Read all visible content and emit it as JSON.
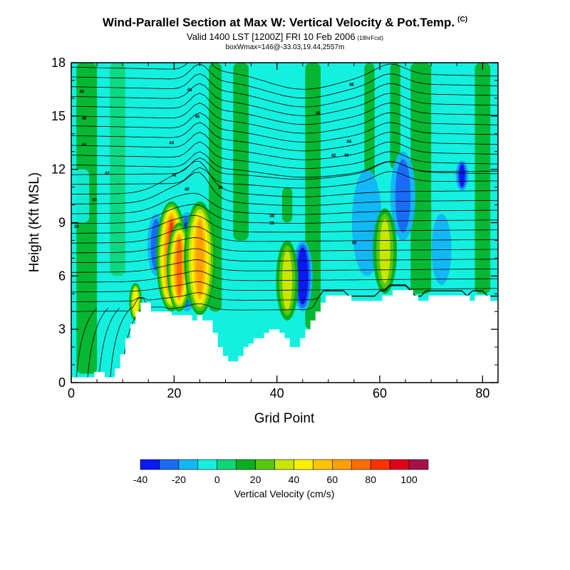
{
  "title": {
    "main": "Wind-Parallel Section at Max W: Vertical Velocity & Pot.Temp.",
    "main_suffix": "(C)",
    "valid": "Valid 1400 LST [1200Z] FRI 10 Feb 2006",
    "forecast": "(18hrFcst)",
    "box": "boxWmax=146@-33.03,19.44,2557m"
  },
  "chart_data": {
    "type": "contourf",
    "xlabel": "Grid Point",
    "ylabel": "Height (Kft MSL)",
    "xlim": [
      0,
      83
    ],
    "ylim": [
      0,
      18
    ],
    "xticks": [
      "0",
      "20",
      "40",
      "60",
      "80"
    ],
    "xtick_values": [
      0,
      20,
      40,
      60,
      80
    ],
    "yticks": [
      "0",
      "3",
      "6",
      "9",
      "12",
      "15",
      "18"
    ],
    "ytick_values": [
      0,
      3,
      6,
      9,
      12,
      15,
      18
    ],
    "colorbar": {
      "label": "Vertical Velocity (cm/s)",
      "tick_labels": [
        "-40",
        "-20",
        "0",
        "20",
        "40",
        "60",
        "80",
        "100"
      ],
      "levels": [
        -40,
        -30,
        -20,
        -10,
        0,
        10,
        20,
        30,
        40,
        50,
        60,
        70,
        80,
        90,
        100,
        110
      ],
      "colors": [
        "#0a19f5",
        "#1a6cf7",
        "#12b8f5",
        "#14f0e0",
        "#0cd678",
        "#04b020",
        "#58c80a",
        "#c8e600",
        "#fff000",
        "#ffc400",
        "#ffa000",
        "#ff6e00",
        "#ff3200",
        "#e00018",
        "#a8104a"
      ]
    },
    "terrain": [
      [
        0,
        0.3
      ],
      [
        1,
        0.3
      ],
      [
        2,
        0.3
      ],
      [
        4,
        0.3
      ],
      [
        5,
        0.6
      ],
      [
        6,
        0.6
      ],
      [
        7,
        0.3
      ],
      [
        8,
        0.3
      ],
      [
        9,
        0.8
      ],
      [
        10,
        1.6
      ],
      [
        11,
        2.5
      ],
      [
        12,
        3.3
      ],
      [
        13,
        4.0
      ],
      [
        14,
        4.5
      ],
      [
        15,
        4.5
      ],
      [
        16,
        4.0
      ],
      [
        17,
        4.0
      ],
      [
        18,
        4.0
      ],
      [
        19,
        4.0
      ],
      [
        20,
        3.8
      ],
      [
        21,
        3.8
      ],
      [
        22,
        3.8
      ],
      [
        23,
        3.8
      ],
      [
        24,
        3.5
      ],
      [
        25,
        3.8
      ],
      [
        26,
        3.5
      ],
      [
        27,
        3.5
      ],
      [
        28,
        2.8
      ],
      [
        29,
        2.0
      ],
      [
        30,
        1.5
      ],
      [
        31,
        1.2
      ],
      [
        32,
        1.2
      ],
      [
        33,
        1.5
      ],
      [
        34,
        2.0
      ],
      [
        35,
        2.2
      ],
      [
        36,
        2.5
      ],
      [
        37,
        2.5
      ],
      [
        38,
        2.8
      ],
      [
        39,
        3.0
      ],
      [
        40,
        3.0
      ],
      [
        41,
        2.8
      ],
      [
        42,
        2.5
      ],
      [
        43,
        2.0
      ],
      [
        44,
        2.0
      ],
      [
        45,
        2.5
      ],
      [
        46,
        3.0
      ],
      [
        47,
        3.5
      ],
      [
        48,
        4.0
      ],
      [
        49,
        4.5
      ],
      [
        50,
        4.9
      ],
      [
        51,
        4.9
      ],
      [
        52,
        4.9
      ],
      [
        53,
        4.9
      ],
      [
        54,
        4.9
      ],
      [
        55,
        4.6
      ],
      [
        56,
        4.6
      ],
      [
        57,
        4.6
      ],
      [
        58,
        4.6
      ],
      [
        59,
        4.6
      ],
      [
        60,
        4.6
      ],
      [
        61,
        4.9
      ],
      [
        62,
        4.9
      ],
      [
        63,
        5.2
      ],
      [
        64,
        5.2
      ],
      [
        65,
        5.2
      ],
      [
        66,
        5.2
      ],
      [
        67,
        4.9
      ],
      [
        68,
        4.6
      ],
      [
        69,
        4.6
      ],
      [
        70,
        4.9
      ],
      [
        71,
        4.9
      ],
      [
        72,
        4.9
      ],
      [
        73,
        4.9
      ],
      [
        74,
        4.9
      ],
      [
        75,
        4.9
      ],
      [
        76,
        4.9
      ],
      [
        77,
        4.9
      ],
      [
        78,
        4.6
      ],
      [
        79,
        4.9
      ],
      [
        80,
        4.9
      ],
      [
        81,
        4.9
      ],
      [
        82,
        4.6
      ],
      [
        83,
        4.6
      ]
    ],
    "updrafts": [
      {
        "x": 12.5,
        "bottom": 3.5,
        "top": 5.6,
        "peak": 45
      },
      {
        "x": 19.5,
        "bottom": 4.0,
        "top": 10.2,
        "peak": 85
      },
      {
        "x": 21.0,
        "bottom": 4.0,
        "top": 9.0,
        "peak": 70
      },
      {
        "x": 25.0,
        "bottom": 3.8,
        "top": 10.2,
        "peak": 60
      },
      {
        "x": 42.0,
        "bottom": 3.5,
        "top": 8.0,
        "peak": 35
      },
      {
        "x": 61.0,
        "bottom": 5.0,
        "top": 9.8,
        "peak": 30
      }
    ],
    "downdrafts": [
      {
        "x": 22.5,
        "bottom": 4.0,
        "top": 9.6,
        "peak": -40
      },
      {
        "x": 24.0,
        "bottom": 4.2,
        "top": 8.5,
        "peak": -25
      },
      {
        "x": 16.5,
        "bottom": 6.0,
        "top": 9.5,
        "peak": -20
      },
      {
        "x": 45.0,
        "bottom": 4.0,
        "top": 8.0,
        "peak": -40
      },
      {
        "x": 76.0,
        "bottom": 10.8,
        "top": 12.5,
        "peak": -30
      },
      {
        "x": 64.5,
        "bottom": 8.0,
        "top": 13.0,
        "peak": -20
      },
      {
        "x": 57.5,
        "bottom": 6.0,
        "top": 12.0,
        "peak": -15
      },
      {
        "x": 72.0,
        "bottom": 5.5,
        "top": 9.5,
        "peak": -15
      }
    ],
    "contour_labels": [
      {
        "text": "48",
        "x": 2.0,
        "y": 16.3
      },
      {
        "text": "46",
        "x": 2.5,
        "y": 14.8
      },
      {
        "text": "44",
        "x": 2.5,
        "y": 13.3
      },
      {
        "text": "42",
        "x": 7.0,
        "y": 11.7
      },
      {
        "text": "40",
        "x": 4.5,
        "y": 10.2
      },
      {
        "text": "38",
        "x": 1.0,
        "y": 8.7
      },
      {
        "text": "48",
        "x": 23.0,
        "y": 16.4
      },
      {
        "text": "46",
        "x": 24.5,
        "y": 14.9
      },
      {
        "text": "44",
        "x": 19.5,
        "y": 13.4
      },
      {
        "text": "42",
        "x": 20.0,
        "y": 11.6
      },
      {
        "text": "40",
        "x": 22.5,
        "y": 10.8
      },
      {
        "text": "36",
        "x": 29.0,
        "y": 10.9
      },
      {
        "text": "38",
        "x": 39.0,
        "y": 9.3
      },
      {
        "text": "36",
        "x": 39.0,
        "y": 8.9
      },
      {
        "text": "48",
        "x": 54.5,
        "y": 16.7
      },
      {
        "text": "46",
        "x": 48.0,
        "y": 15.1
      },
      {
        "text": "44",
        "x": 54.0,
        "y": 13.5
      },
      {
        "text": "42",
        "x": 51.0,
        "y": 12.7
      },
      {
        "text": "40",
        "x": 53.5,
        "y": 12.7
      },
      {
        "text": "38",
        "x": 55.0,
        "y": 7.8
      }
    ]
  }
}
